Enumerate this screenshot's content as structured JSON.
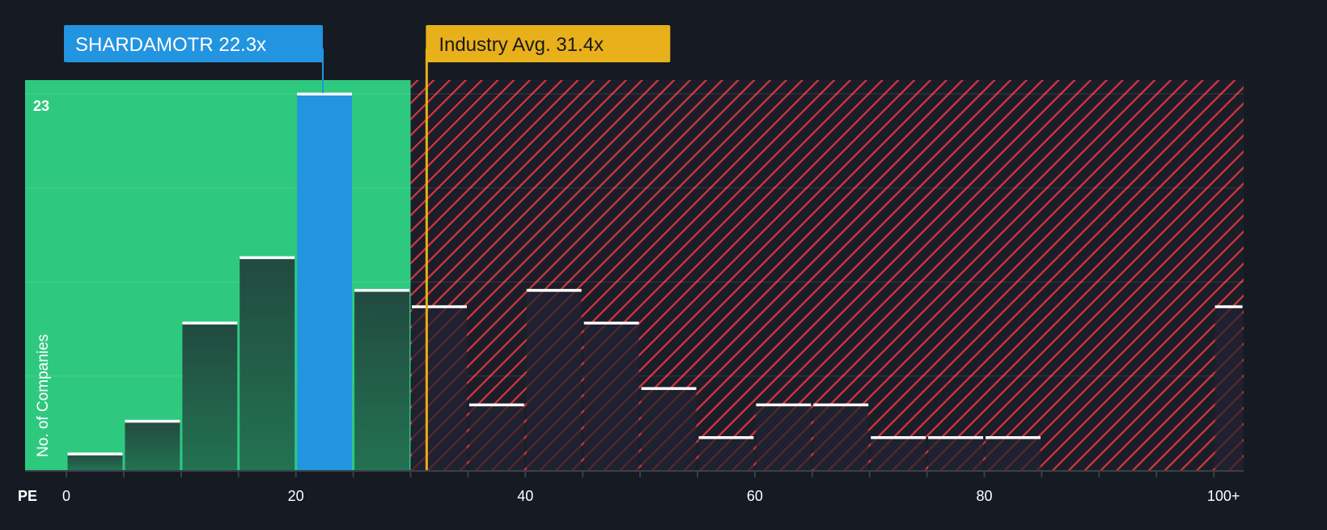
{
  "chart_data": {
    "type": "bar",
    "title": "",
    "xlabel": "PE",
    "ylabel": "No. of Companies",
    "bin_width": 5,
    "bins": [
      {
        "start": 0,
        "end": 5,
        "value": 1
      },
      {
        "start": 5,
        "end": 10,
        "value": 3
      },
      {
        "start": 10,
        "end": 15,
        "value": 9
      },
      {
        "start": 15,
        "end": 20,
        "value": 13
      },
      {
        "start": 20,
        "end": 25,
        "value": 23,
        "highlight": true
      },
      {
        "start": 25,
        "end": 30,
        "value": 11
      },
      {
        "start": 30,
        "end": 35,
        "value": 10
      },
      {
        "start": 35,
        "end": 40,
        "value": 4
      },
      {
        "start": 40,
        "end": 45,
        "value": 11
      },
      {
        "start": 45,
        "end": 50,
        "value": 9
      },
      {
        "start": 50,
        "end": 55,
        "value": 5
      },
      {
        "start": 55,
        "end": 60,
        "value": 2
      },
      {
        "start": 60,
        "end": 65,
        "value": 4
      },
      {
        "start": 65,
        "end": 70,
        "value": 4
      },
      {
        "start": 70,
        "end": 75,
        "value": 2
      },
      {
        "start": 75,
        "end": 80,
        "value": 2
      },
      {
        "start": 80,
        "end": 85,
        "value": 2
      },
      {
        "start": 100,
        "end": 102.6,
        "value": 10,
        "label": "100+"
      }
    ],
    "x_ticks": [
      "0",
      "20",
      "40",
      "60",
      "80",
      "100+"
    ],
    "x_tick_values": [
      0,
      20,
      40,
      60,
      80,
      100
    ],
    "y_max_label": "23",
    "ylim": [
      0,
      24.1
    ],
    "xlim": [
      -3.6,
      102.6
    ],
    "fair_threshold": 30,
    "company": {
      "label": "SHARDAMOTR 22.3x",
      "value": 22.3
    },
    "industry": {
      "label": "Industry Avg. 31.4x",
      "value": 31.4
    },
    "colors": {
      "background": "#151a23",
      "green_zone": "#2ec97f",
      "highlight_bar": "#2394df",
      "industry": "#e8b01a",
      "hatch": "#d8363b"
    }
  }
}
